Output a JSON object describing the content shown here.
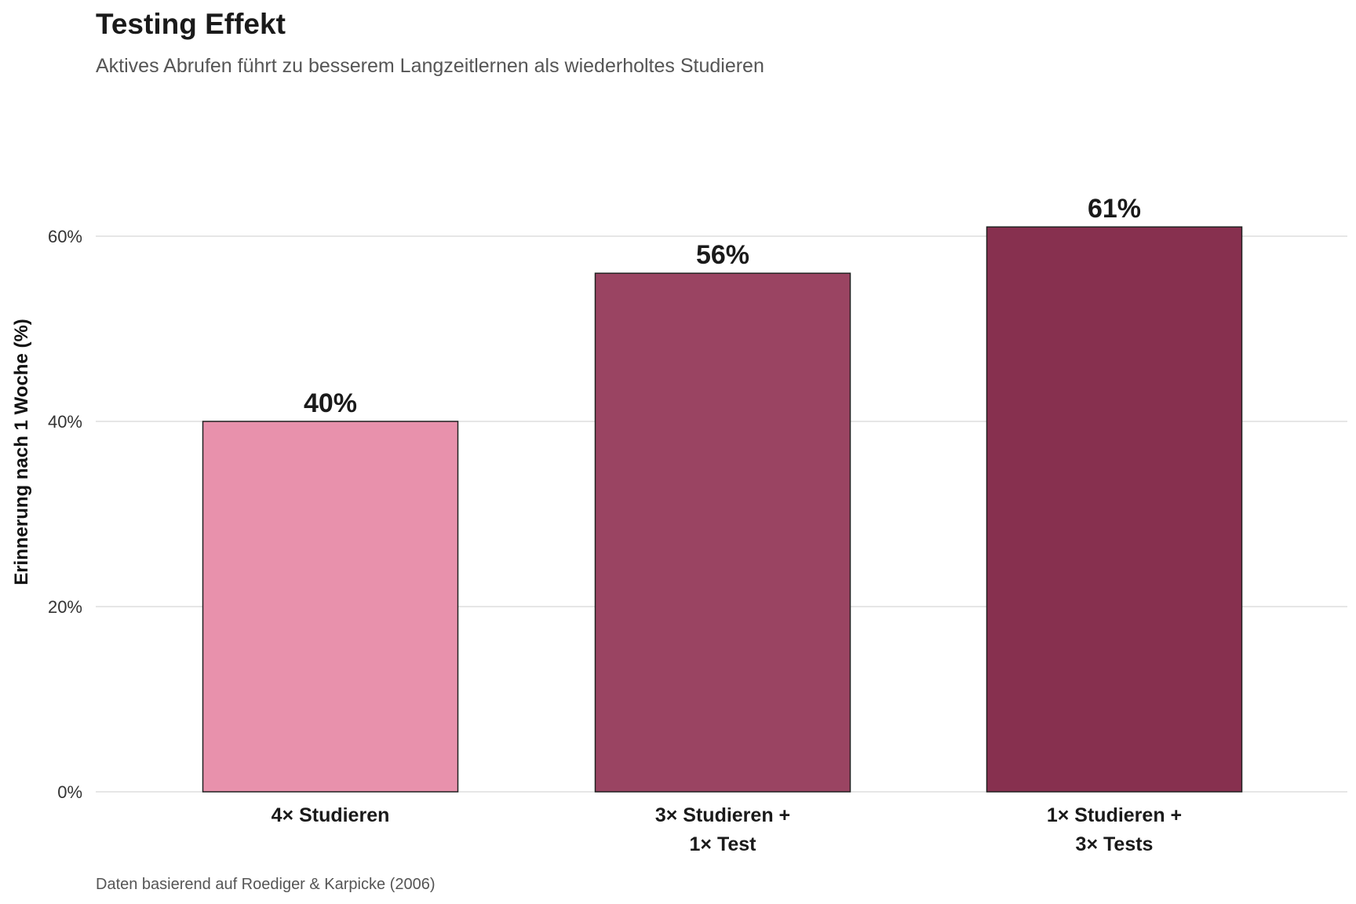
{
  "chart_data": {
    "type": "bar",
    "title": "Testing Effekt",
    "subtitle": "Aktives Abrufen führt zu besserem Langzeitlernen als wiederholtes Studieren",
    "caption": "Daten basierend auf Roediger & Karpicke (2006)",
    "xlabel": "",
    "ylabel": "Erinnerung nach 1 Woche (%)",
    "categories": [
      [
        "4× Studieren"
      ],
      [
        "3× Studieren +",
        "1× Test"
      ],
      [
        "1× Studieren +",
        "3× Tests"
      ]
    ],
    "values": [
      40,
      56,
      61
    ],
    "value_labels": [
      "40%",
      "56%",
      "61%"
    ],
    "colors": [
      "#E891AC",
      "#9A4462",
      "#87304F"
    ],
    "yticks": [
      0,
      20,
      40,
      60
    ],
    "ytick_labels": [
      "0%",
      "20%",
      "40%",
      "60%"
    ],
    "ylim": [
      0,
      70
    ],
    "grid": true
  }
}
